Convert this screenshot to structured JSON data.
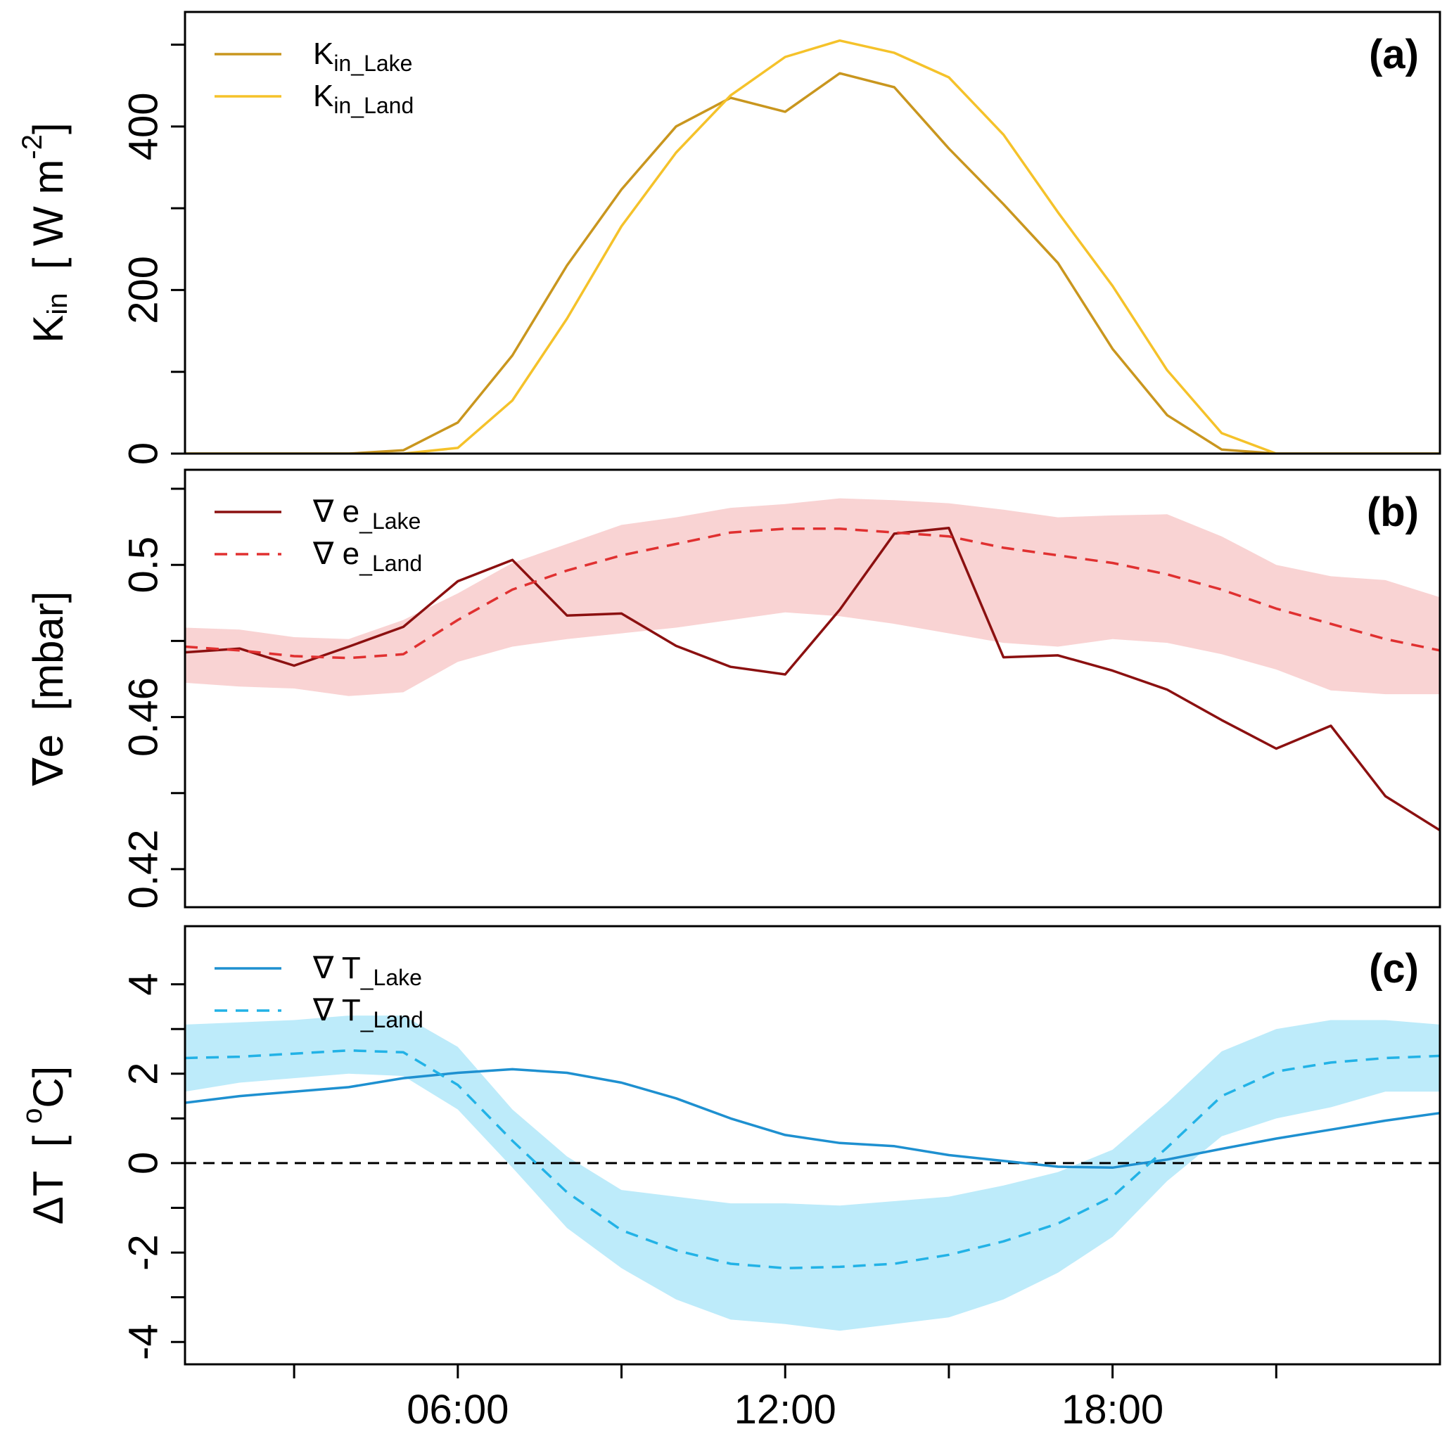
{
  "chart_data": [
    {
      "type": "line",
      "panel_label": "(a)",
      "ylabel": {
        "main": "K",
        "sub": "in",
        "unit_prefix": "[ W m",
        "unit_sup": "-2",
        "unit_suffix": "]"
      },
      "ylim": [
        0,
        540
      ],
      "yticks": [
        0,
        100,
        200,
        300,
        400,
        500
      ],
      "yticklabels": [
        {
          "value": 0,
          "text": "0"
        },
        {
          "value": 200,
          "text": "200"
        },
        {
          "value": 400,
          "text": "400"
        }
      ],
      "legend": {
        "position": "top-left"
      },
      "series": [
        {
          "name": "Kin_Lake",
          "legend_main": "K",
          "legend_sub": "in_Lake",
          "color": "#C9961E",
          "dash": "",
          "x": [
            0,
            1,
            2,
            3,
            4,
            5,
            6,
            7,
            8,
            9,
            10,
            11,
            12,
            13,
            14,
            15,
            16,
            17,
            18,
            19,
            20,
            21,
            22,
            23
          ],
          "values": [
            0,
            0,
            0,
            0,
            4,
            38,
            120,
            230,
            323,
            400,
            435,
            418,
            465,
            448,
            373,
            305,
            233,
            128,
            47,
            5,
            0,
            0,
            0,
            0
          ]
        },
        {
          "name": "Kin_Land",
          "legend_main": "K",
          "legend_sub": "in_Land",
          "color": "#F5C22A",
          "dash": "",
          "x": [
            0,
            1,
            2,
            3,
            4,
            5,
            6,
            7,
            8,
            9,
            10,
            11,
            12,
            13,
            14,
            15,
            16,
            17,
            18,
            19,
            20,
            21,
            22,
            23
          ],
          "values": [
            0,
            0,
            0,
            0,
            0,
            7,
            65,
            165,
            278,
            368,
            438,
            485,
            505,
            490,
            460,
            390,
            295,
            205,
            102,
            25,
            0,
            0,
            0,
            0
          ]
        }
      ]
    },
    {
      "type": "line",
      "panel_label": "(b)",
      "ylabel": {
        "main": "∇e",
        "unit": "[mbar]"
      },
      "ylim": [
        0.41,
        0.525
      ],
      "yticks": [
        0.42,
        0.44,
        0.46,
        0.48,
        0.5,
        0.52
      ],
      "yticklabels": [
        {
          "value": 0.42,
          "text": "0.42"
        },
        {
          "value": 0.46,
          "text": "0.46"
        },
        {
          "value": 0.5,
          "text": "0.5"
        }
      ],
      "legend": {
        "position": "top-left"
      },
      "band": {
        "color": "#F9D3D3",
        "x": [
          0,
          1,
          2,
          3,
          4,
          5,
          6,
          7,
          8,
          9,
          10,
          11,
          12,
          13,
          14,
          15,
          16,
          17,
          18,
          19,
          20,
          21,
          22,
          23
        ],
        "upper": [
          0.4835,
          0.483,
          0.481,
          0.4805,
          0.4855,
          0.4925,
          0.5005,
          0.5055,
          0.5105,
          0.5125,
          0.515,
          0.516,
          0.5175,
          0.517,
          0.5162,
          0.5145,
          0.5125,
          0.513,
          0.5133,
          0.5075,
          0.5,
          0.497,
          0.496,
          0.4915
        ],
        "lower": [
          0.469,
          0.468,
          0.4675,
          0.4655,
          0.4665,
          0.4745,
          0.4785,
          0.4805,
          0.482,
          0.4835,
          0.4855,
          0.4875,
          0.4865,
          0.4845,
          0.482,
          0.4795,
          0.4785,
          0.4805,
          0.4795,
          0.4765,
          0.4725,
          0.467,
          0.466,
          0.466
        ]
      },
      "series": [
        {
          "name": "∇e_Lake",
          "legend_main": "∇ e",
          "legend_sub": "_Lake",
          "color": "#8B1010",
          "dash": "",
          "x": [
            0,
            1,
            2,
            3,
            4,
            5,
            6,
            7,
            8,
            9,
            10,
            11,
            12,
            13,
            14,
            15,
            16,
            17,
            18,
            19,
            20,
            21,
            22,
            23
          ],
          "values": [
            0.477,
            0.478,
            0.4735,
            0.4785,
            0.4837,
            0.4957,
            0.5013,
            0.4867,
            0.4872,
            0.4787,
            0.4732,
            0.4712,
            0.4882,
            0.5082,
            0.5097,
            0.4757,
            0.4762,
            0.4722,
            0.4672,
            0.4592,
            0.4517,
            0.4577,
            0.4392,
            0.4302
          ]
        },
        {
          "name": "∇e_Land",
          "legend_main": "∇ e",
          "legend_sub": "_Land",
          "color": "#E03030",
          "dash": "18,12",
          "x": [
            0,
            1,
            2,
            3,
            4,
            5,
            6,
            7,
            8,
            9,
            10,
            11,
            12,
            13,
            14,
            15,
            16,
            17,
            18,
            19,
            20,
            21,
            22,
            23
          ],
          "values": [
            0.4785,
            0.4775,
            0.476,
            0.4755,
            0.4765,
            0.4855,
            0.4935,
            0.4985,
            0.5025,
            0.5055,
            0.5085,
            0.5095,
            0.5095,
            0.5085,
            0.5075,
            0.5045,
            0.5025,
            0.5005,
            0.4975,
            0.4935,
            0.4885,
            0.4845,
            0.4805,
            0.4775
          ]
        }
      ]
    },
    {
      "type": "line",
      "panel_label": "(c)",
      "ylabel": {
        "main": "ΔT",
        "unit_prefix": "[ ",
        "unit_sup": "o",
        "unit_suffix": "C]"
      },
      "ylim": [
        -4.5,
        5.3
      ],
      "yticks": [
        -4,
        -3,
        -2,
        -1,
        0,
        1,
        2,
        3,
        4
      ],
      "yticklabels": [
        {
          "value": -4,
          "text": "-4"
        },
        {
          "value": -2,
          "text": "-2"
        },
        {
          "value": 0,
          "text": "0"
        },
        {
          "value": 2,
          "text": "2"
        },
        {
          "value": 4,
          "text": "4"
        }
      ],
      "hline": {
        "value": 0,
        "color": "#000000",
        "dash": "16,10"
      },
      "legend": {
        "position": "top-left"
      },
      "band": {
        "color": "#BDEBFA",
        "x": [
          0,
          1,
          2,
          3,
          4,
          5,
          6,
          7,
          8,
          9,
          10,
          11,
          12,
          13,
          14,
          15,
          16,
          17,
          18,
          19,
          20,
          21,
          22,
          23
        ],
        "upper": [
          3.1,
          3.15,
          3.2,
          3.3,
          3.3,
          2.6,
          1.2,
          0.15,
          -0.6,
          -0.75,
          -0.9,
          -0.9,
          -0.95,
          -0.85,
          -0.75,
          -0.5,
          -0.2,
          0.3,
          1.35,
          2.5,
          3.0,
          3.2,
          3.2,
          3.1
        ],
        "lower": [
          1.6,
          1.8,
          1.9,
          2.0,
          1.95,
          1.2,
          -0.1,
          -1.45,
          -2.35,
          -3.05,
          -3.5,
          -3.6,
          -3.75,
          -3.6,
          -3.45,
          -3.05,
          -2.45,
          -1.65,
          -0.4,
          0.6,
          1.0,
          1.25,
          1.6,
          1.6
        ]
      },
      "series": [
        {
          "name": "∇T_Lake",
          "legend_main": "∇ T",
          "legend_sub": "_Lake",
          "color": "#1E90D0",
          "dash": "",
          "x": [
            0,
            1,
            2,
            3,
            4,
            5,
            6,
            7,
            8,
            9,
            10,
            11,
            12,
            13,
            14,
            15,
            16,
            17,
            18,
            19,
            20,
            21,
            22,
            23
          ],
          "values": [
            1.35,
            1.5,
            1.6,
            1.7,
            1.9,
            2.02,
            2.1,
            2.02,
            1.8,
            1.45,
            1.0,
            0.63,
            0.45,
            0.38,
            0.18,
            0.05,
            -0.08,
            -0.1,
            0.08,
            0.32,
            0.55,
            0.75,
            0.95,
            1.12
          ]
        },
        {
          "name": "∇T_Land",
          "legend_main": "∇ T",
          "legend_sub": "_Land",
          "color": "#22B2E6",
          "dash": "18,12",
          "x": [
            0,
            1,
            2,
            3,
            4,
            5,
            6,
            7,
            8,
            9,
            10,
            11,
            12,
            13,
            14,
            15,
            16,
            17,
            18,
            19,
            20,
            21,
            22,
            23
          ],
          "values": [
            2.35,
            2.38,
            2.45,
            2.52,
            2.48,
            1.75,
            0.5,
            -0.65,
            -1.5,
            -1.95,
            -2.25,
            -2.35,
            -2.32,
            -2.25,
            -2.05,
            -1.75,
            -1.35,
            -0.75,
            0.35,
            1.5,
            2.05,
            2.25,
            2.35,
            2.4
          ]
        }
      ]
    }
  ],
  "x_axis": {
    "xlim": [
      0,
      23
    ],
    "ticks": [
      2,
      5,
      8,
      11,
      14,
      17,
      20
    ],
    "ticklabels": [
      {
        "value": 5,
        "text": "06:00"
      },
      {
        "value": 11,
        "text": "12:00"
      },
      {
        "value": 17,
        "text": "18:00"
      }
    ]
  }
}
